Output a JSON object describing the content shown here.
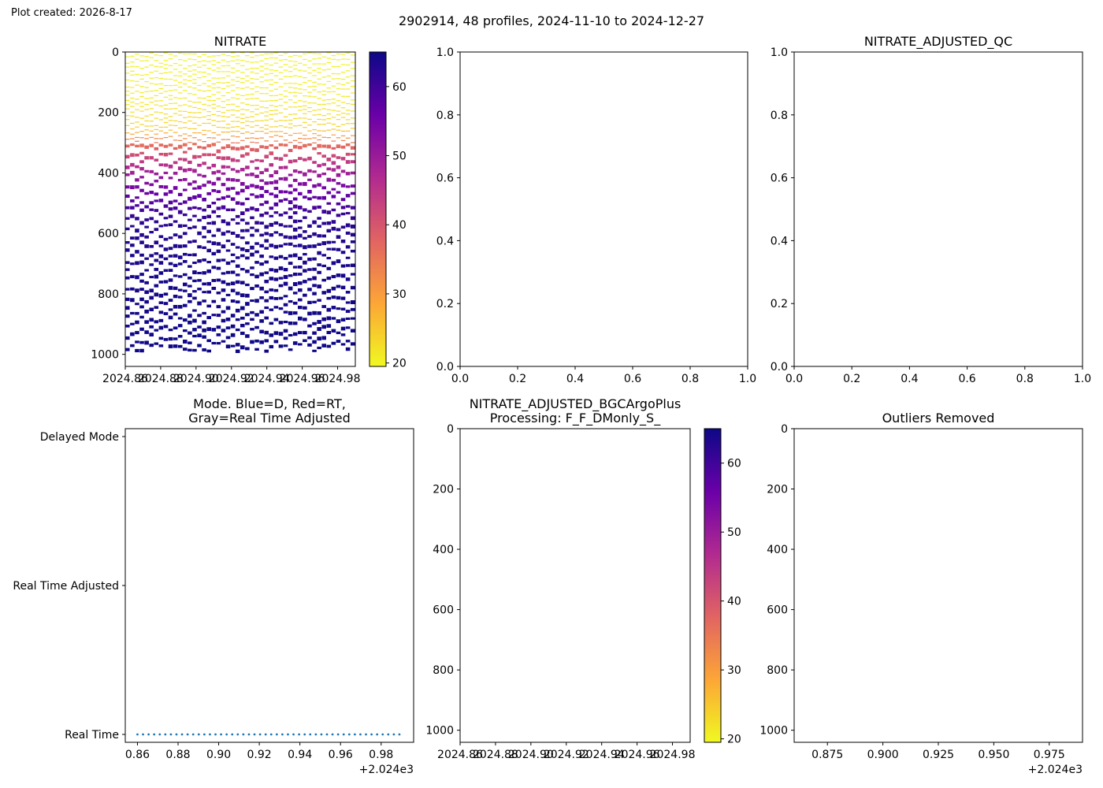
{
  "created": "Plot created: 2026-8-17",
  "suptitle": "2902914, 48 profiles, 2024-11-10 to 2024-12-27",
  "colormap": [
    "#f0f921",
    "#fca636",
    "#e16462",
    "#b12a90",
    "#6a00a8",
    "#0d0887"
  ],
  "chart_data": [
    {
      "id": "nitrate",
      "type": "heatmap",
      "title": "NITRATE",
      "xlabel": "",
      "ylabel": "",
      "xlim": [
        2024.86,
        2024.99
      ],
      "ylim": [
        1040,
        0
      ],
      "x_ticks": [
        2024.86,
        2024.88,
        2024.9,
        2024.92,
        2024.94,
        2024.96,
        2024.98
      ],
      "x_tick_labels": [
        "2024.86",
        "2024.88",
        "2024.90",
        "2024.92",
        "2024.94",
        "2024.96",
        "2024.98"
      ],
      "y_ticks": [
        0,
        200,
        400,
        600,
        800,
        1000
      ],
      "y_tick_labels": [
        "0",
        "200",
        "400",
        "600",
        "800",
        "1000"
      ],
      "profiles": 48,
      "profile_x_range": [
        2024.86,
        2024.99
      ],
      "value_profile": [
        [
          0,
          20
        ],
        [
          150,
          21
        ],
        [
          250,
          24
        ],
        [
          300,
          36
        ],
        [
          340,
          42
        ],
        [
          400,
          50
        ],
        [
          460,
          56
        ],
        [
          550,
          62
        ],
        [
          700,
          64
        ],
        [
          1000,
          65
        ]
      ],
      "colorbar": {
        "vmin": 19.5,
        "vmax": 65,
        "ticks": [
          20,
          30,
          40,
          50,
          60
        ],
        "tick_labels": [
          "20",
          "30",
          "40",
          "50",
          "60"
        ]
      }
    },
    {
      "id": "empty_top",
      "type": "scatter",
      "title": "",
      "xlim": [
        0,
        1
      ],
      "ylim": [
        0,
        1
      ],
      "x_ticks": [
        0,
        0.2,
        0.4,
        0.6,
        0.8,
        1.0
      ],
      "x_tick_labels": [
        "0.0",
        "0.2",
        "0.4",
        "0.6",
        "0.8",
        "1.0"
      ],
      "y_ticks": [
        0,
        0.2,
        0.4,
        0.6,
        0.8,
        1.0
      ],
      "y_tick_labels": [
        "0.0",
        "0.2",
        "0.4",
        "0.6",
        "0.8",
        "1.0"
      ],
      "series": []
    },
    {
      "id": "qc",
      "type": "scatter",
      "title": "NITRATE_ADJUSTED_QC",
      "xlim": [
        0,
        1
      ],
      "ylim": [
        0,
        1
      ],
      "x_ticks": [
        0,
        0.2,
        0.4,
        0.6,
        0.8,
        1.0
      ],
      "x_tick_labels": [
        "0.0",
        "0.2",
        "0.4",
        "0.6",
        "0.8",
        "1.0"
      ],
      "y_ticks": [
        0,
        0.2,
        0.4,
        0.6,
        0.8,
        1.0
      ],
      "y_tick_labels": [
        "0.0",
        "0.2",
        "0.4",
        "0.6",
        "0.8",
        "1.0"
      ],
      "series": []
    },
    {
      "id": "mode",
      "type": "scatter",
      "title": "Mode. Blue=D, Red=RT,\nGray=Real Time Adjusted",
      "xlim": [
        2024.854,
        2024.996
      ],
      "x_ticks": [
        2024.86,
        2024.88,
        2024.9,
        2024.92,
        2024.94,
        2024.96,
        2024.98
      ],
      "x_tick_labels": [
        "0.86",
        "0.88",
        "0.90",
        "0.92",
        "0.94",
        "0.96",
        "0.98"
      ],
      "x_offset_label": "+2.024e3",
      "y_categories": [
        "Real Time",
        "Real Time Adjusted",
        "Delayed Mode"
      ],
      "points": {
        "count": 48,
        "x_start": 2024.86,
        "x_end": 2024.989,
        "category": "Real Time",
        "color": "#1f77b4"
      }
    },
    {
      "id": "bgc",
      "type": "heatmap",
      "title": "NITRATE_ADJUSTED_BGCArgoPlus\nProcessing: F_F_DMonly_S_",
      "xlim": [
        2024.86,
        2024.99
      ],
      "ylim": [
        1040,
        0
      ],
      "x_ticks": [
        2024.86,
        2024.88,
        2024.9,
        2024.92,
        2024.94,
        2024.96,
        2024.98
      ],
      "x_tick_labels": [
        "2024.86",
        "2024.88",
        "2024.90",
        "2024.92",
        "2024.94",
        "2024.96",
        "2024.98"
      ],
      "y_ticks": [
        0,
        200,
        400,
        600,
        800,
        1000
      ],
      "y_tick_labels": [
        "0",
        "200",
        "400",
        "600",
        "800",
        "1000"
      ],
      "colorbar": {
        "vmin": 19.5,
        "vmax": 65,
        "ticks": [
          20,
          30,
          40,
          50,
          60
        ],
        "tick_labels": [
          "20",
          "30",
          "40",
          "50",
          "60"
        ]
      }
    },
    {
      "id": "outliers",
      "type": "scatter",
      "title": "Outliers Removed",
      "xlim": [
        2024.86,
        2024.99
      ],
      "ylim": [
        1040,
        0
      ],
      "x_ticks": [
        2024.875,
        2024.9,
        2024.925,
        2024.95,
        2024.975
      ],
      "x_tick_labels": [
        "0.875",
        "0.900",
        "0.925",
        "0.950",
        "0.975"
      ],
      "x_offset_label": "+2.024e3",
      "y_ticks": [
        0,
        200,
        400,
        600,
        800,
        1000
      ],
      "y_tick_labels": [
        "0",
        "200",
        "400",
        "600",
        "800",
        "1000"
      ],
      "series": []
    }
  ]
}
